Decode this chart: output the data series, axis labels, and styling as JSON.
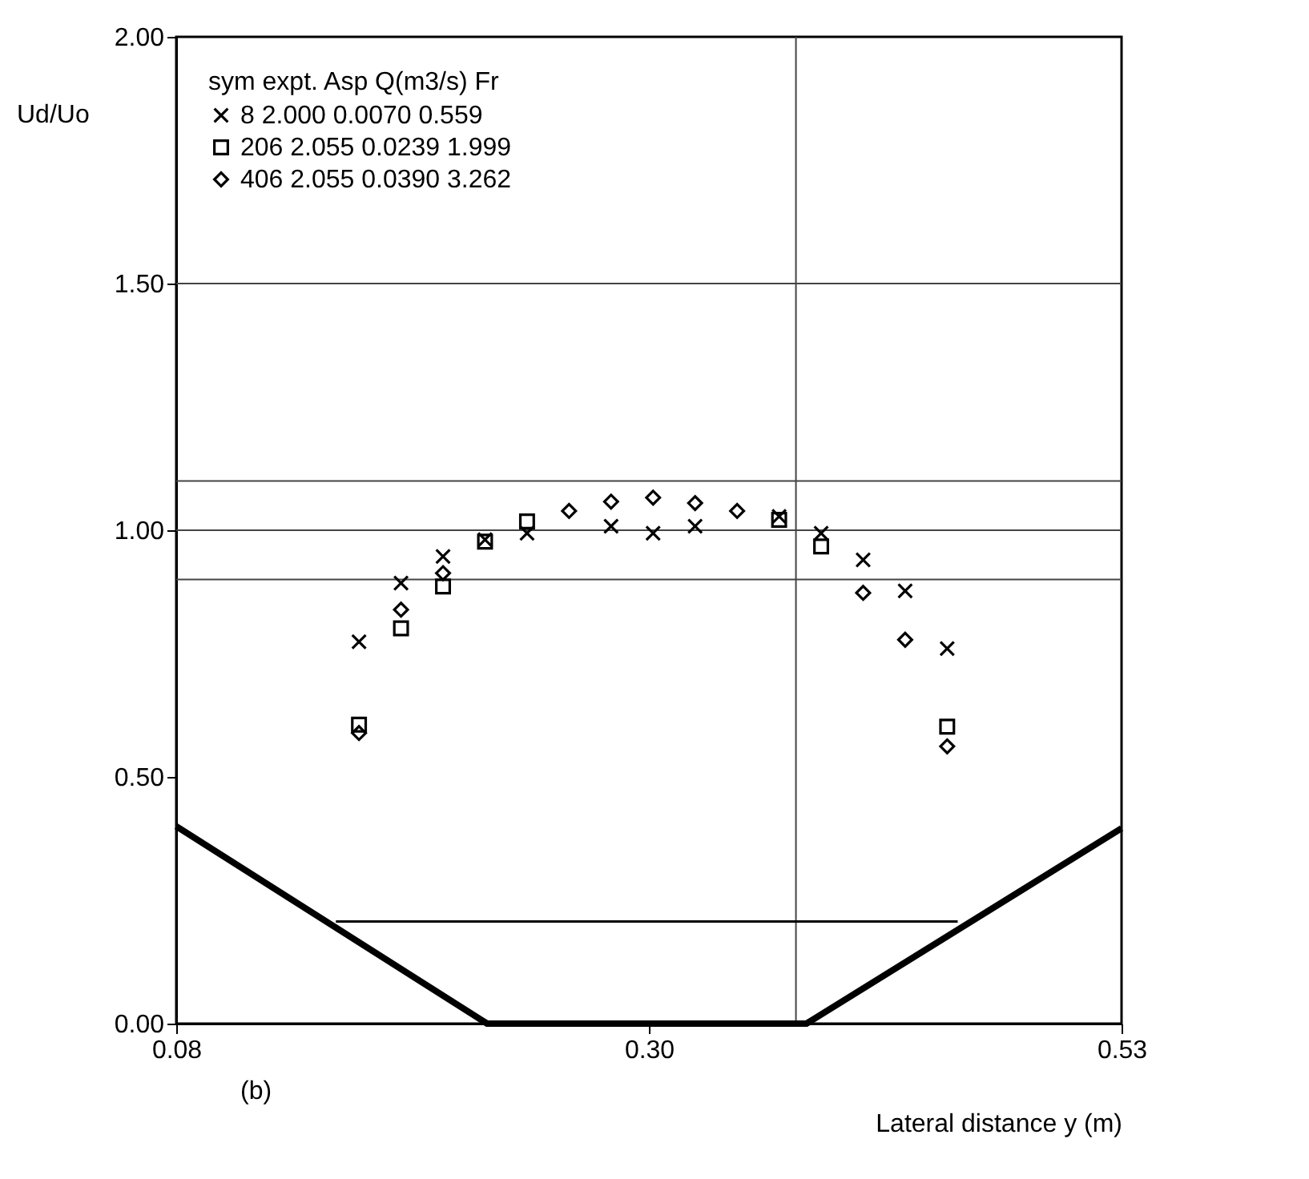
{
  "chart_data": {
    "type": "scatter",
    "xlabel": "Lateral distance y (m)",
    "ylabel": "Ud/Uo",
    "legend_title": "sym   expt.   Asp    Q(m3/s)    Fr",
    "legend": "top left",
    "annotations": [
      "(b)"
    ],
    "xlim": [
      0.08,
      0.53
    ],
    "xticks": [
      0.08,
      {
        "value": 0.305,
        "label": "0.30"
      },
      0.53
    ],
    "ylim": [
      0,
      2
    ],
    "yticks": [
      {
        "value": 0,
        "label": "0.00"
      },
      {
        "value": 0.5,
        "label": "0.50"
      },
      {
        "value": 1,
        "label": "1.00"
      },
      {
        "value": 1.5,
        "label": "1.50"
      },
      {
        "value": 2,
        "label": "2.00"
      }
    ],
    "grid": false,
    "x": [
      0.167,
      0.187,
      0.207,
      0.227,
      0.247,
      0.267,
      0.287,
      0.307,
      0.327,
      0.347,
      0.367,
      0.387,
      0.407,
      0.427,
      0.447
    ],
    "series": [
      {
        "name": "8   2.000   0.0070   0.559",
        "color": "#000000",
        "marker": "cross",
        "values": [
          0.774,
          0.893,
          0.947,
          0.981,
          0.994,
          null,
          1.008,
          0.994,
          1.008,
          null,
          1.028,
          0.994,
          0.94,
          0.877,
          0.76
        ]
      },
      {
        "name": "206   2.055   0.0239   1.999",
        "color": "#000000",
        "marker": "square",
        "values": [
          0.606,
          0.801,
          0.886,
          0.977,
          1.018,
          null,
          null,
          null,
          null,
          null,
          1.021,
          0.967,
          null,
          null,
          0.602
        ]
      },
      {
        "name": "406   2.055   0.0390   3.262",
        "color": "#000000",
        "marker": "diamond",
        "values": [
          0.589,
          0.839,
          0.913,
          null,
          null,
          1.039,
          1.058,
          1.066,
          1.055,
          1.039,
          null,
          null,
          0.873,
          0.778,
          0.562
        ]
      },
      {
        "type": "line",
        "color": "#000000",
        "x": [
          0.08,
          0.228,
          0.38,
          0.53
        ],
        "values": [
          0.4,
          0,
          0,
          0.396
        ]
      },
      {
        "type": "line",
        "color": "#000000",
        "x": [
          0.156,
          0.452
        ],
        "values": [
          0.207,
          0.207
        ]
      }
    ],
    "ref_lines": [
      {
        "axis": "y",
        "value": 1.5,
        "color": "#444444"
      },
      {
        "axis": "y",
        "value": 1.1,
        "color": "#444444"
      },
      {
        "axis": "y",
        "value": 1.0,
        "color": "#444444"
      },
      {
        "axis": "y",
        "value": 0.9,
        "color": "#444444"
      },
      {
        "axis": "x",
        "value": 0.375,
        "color": "#444444"
      }
    ]
  }
}
